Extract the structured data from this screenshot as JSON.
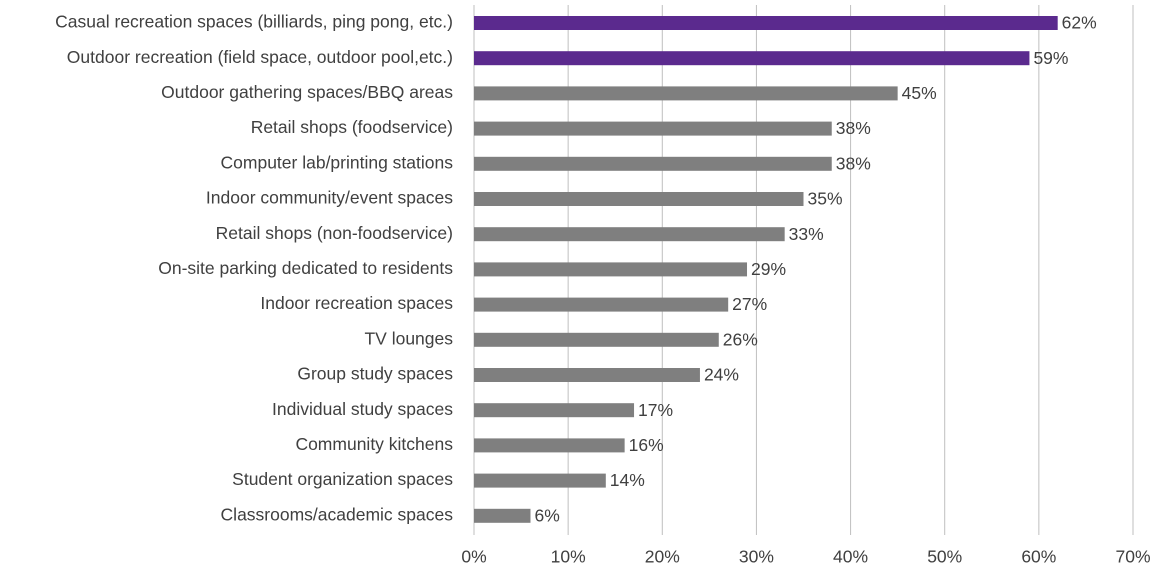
{
  "chart_data": {
    "type": "barh",
    "categories": [
      "Casual recreation spaces (billiards, ping pong, etc.)",
      "Outdoor recreation (field space, outdoor pool,etc.)",
      "Outdoor gathering spaces/BBQ areas",
      "Retail shops (foodservice)",
      "Computer lab/printing stations",
      "Indoor community/event spaces",
      "Retail shops (non-foodservice)",
      "On-site parking dedicated to residents",
      "Indoor recreation spaces",
      "TV lounges",
      "Group study spaces",
      "Individual study spaces",
      "Community kitchens",
      "Student organization spaces",
      "Classrooms/academic spaces"
    ],
    "values": [
      62,
      59,
      45,
      38,
      38,
      35,
      33,
      29,
      27,
      26,
      24,
      17,
      16,
      14,
      6
    ],
    "value_labels": [
      "62%",
      "59%",
      "45%",
      "38%",
      "38%",
      "35%",
      "33%",
      "29%",
      "27%",
      "26%",
      "24%",
      "17%",
      "16%",
      "14%",
      "6%"
    ],
    "colors": [
      "#5b2a8e",
      "#5b2a8e",
      "#7f7f7f",
      "#7f7f7f",
      "#7f7f7f",
      "#7f7f7f",
      "#7f7f7f",
      "#7f7f7f",
      "#7f7f7f",
      "#7f7f7f",
      "#7f7f7f",
      "#7f7f7f",
      "#7f7f7f",
      "#7f7f7f",
      "#7f7f7f"
    ],
    "xlim": [
      0,
      70
    ],
    "xticks": [
      {
        "value": 0,
        "label": "0%"
      },
      {
        "value": 10,
        "label": "10%"
      },
      {
        "value": 20,
        "label": "20%"
      },
      {
        "value": 30,
        "label": "30%"
      },
      {
        "value": 40,
        "label": "40%"
      },
      {
        "value": 50,
        "label": "50%"
      },
      {
        "value": 60,
        "label": "60%"
      },
      {
        "value": 70,
        "label": "70%"
      }
    ],
    "grid": true
  }
}
